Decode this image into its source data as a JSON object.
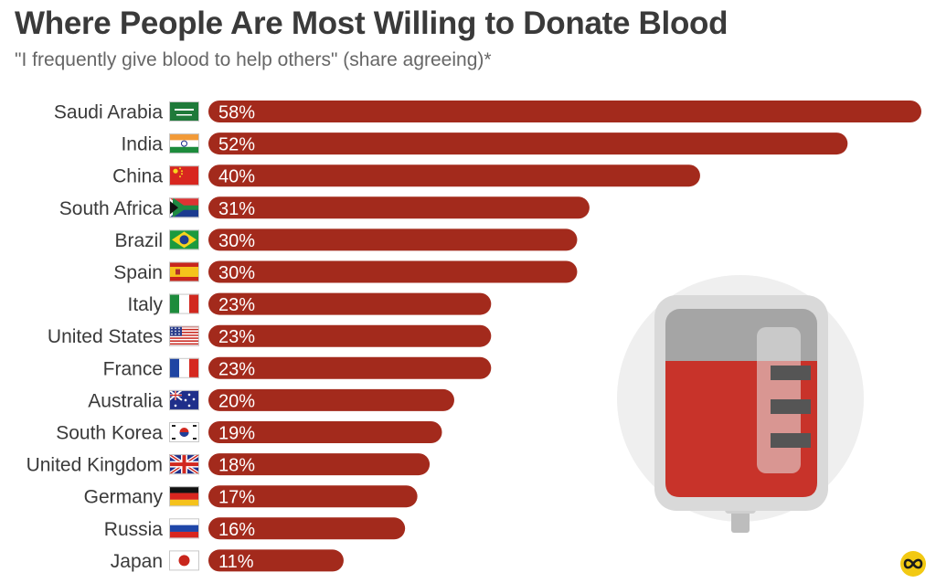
{
  "chart_data": {
    "type": "bar",
    "orientation": "horizontal",
    "title": "Where People Are Most Willing to Donate Blood",
    "subtitle": "\"I frequently give blood to help others\" (share agreeing)*",
    "categories": [
      "Saudi Arabia",
      "India",
      "China",
      "South Africa",
      "Brazil",
      "Spain",
      "Italy",
      "United States",
      "France",
      "Australia",
      "South Korea",
      "United Kingdom",
      "Germany",
      "Russia",
      "Japan"
    ],
    "values": [
      58,
      52,
      40,
      31,
      30,
      30,
      23,
      23,
      23,
      20,
      19,
      18,
      17,
      16,
      11
    ],
    "value_labels": [
      "58%",
      "52%",
      "40%",
      "31%",
      "30%",
      "30%",
      "23%",
      "23%",
      "23%",
      "20%",
      "19%",
      "18%",
      "17%",
      "16%",
      "11%"
    ],
    "unit": "%",
    "xlim": [
      0,
      58
    ],
    "grid": false,
    "bar_color": "#a32a1c",
    "flags": [
      "saudi-arabia-flag-icon",
      "india-flag-icon",
      "china-flag-icon",
      "south-africa-flag-icon",
      "brazil-flag-icon",
      "spain-flag-icon",
      "italy-flag-icon",
      "united-states-flag-icon",
      "france-flag-icon",
      "australia-flag-icon",
      "south-korea-flag-icon",
      "united-kingdom-flag-icon",
      "germany-flag-icon",
      "russia-flag-icon",
      "japan-flag-icon"
    ]
  },
  "decoration": {
    "illustration_icon": "blood-bag-icon",
    "logo_icon": "statista-logo-icon"
  }
}
